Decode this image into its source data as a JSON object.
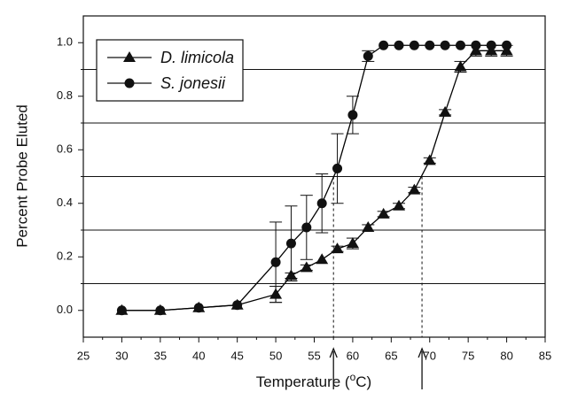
{
  "chart_data": {
    "type": "line",
    "xlabel": "Temperature (°C)",
    "ylabel": "Percent Probe Eluted",
    "xlim": [
      25,
      85
    ],
    "ylim": [
      -0.1,
      1.1
    ],
    "x_ticks": [
      25,
      30,
      35,
      40,
      45,
      50,
      55,
      60,
      65,
      70,
      75,
      80,
      85
    ],
    "y_ticks": [
      0.0,
      0.2,
      0.4,
      0.6,
      0.8,
      1.0
    ],
    "reference_lines": [
      0.1,
      0.3,
      0.5,
      0.7,
      0.9
    ],
    "legend_position": "top-left",
    "series": [
      {
        "name": "D. limicola",
        "marker": "triangle",
        "color": "#000000",
        "x": [
          30,
          35,
          40,
          45,
          50,
          52,
          54,
          56,
          58,
          60,
          62,
          64,
          66,
          68,
          70,
          72,
          74,
          76,
          78,
          80
        ],
        "y": [
          0.0,
          0.0,
          0.01,
          0.02,
          0.06,
          0.13,
          0.16,
          0.19,
          0.23,
          0.25,
          0.31,
          0.36,
          0.39,
          0.45,
          0.56,
          0.74,
          0.91,
          0.97,
          0.97,
          0.97
        ],
        "error": [
          0.0,
          0.0,
          0.0,
          0.0,
          0.03,
          0.01,
          0.01,
          0.0,
          0.01,
          0.02,
          0.01,
          0.01,
          0.01,
          0.01,
          0.01,
          0.01,
          0.02,
          0.02,
          0.02,
          0.02
        ]
      },
      {
        "name": "S. jonesii",
        "marker": "circle",
        "color": "#000000",
        "x": [
          30,
          35,
          40,
          45,
          50,
          52,
          54,
          56,
          58,
          60,
          62,
          64,
          66,
          68,
          70,
          72,
          74,
          76,
          78,
          80
        ],
        "y": [
          0.0,
          0.0,
          0.01,
          0.02,
          0.18,
          0.25,
          0.31,
          0.4,
          0.53,
          0.73,
          0.95,
          0.99,
          0.99,
          0.99,
          0.99,
          0.99,
          0.99,
          0.99,
          0.99,
          0.99
        ],
        "error": [
          0.0,
          0.0,
          0.0,
          0.0,
          0.15,
          0.14,
          0.12,
          0.11,
          0.13,
          0.07,
          0.02,
          0.0,
          0.0,
          0.0,
          0.0,
          0.0,
          0.0,
          0.0,
          0.0,
          0.0
        ]
      }
    ],
    "dashed_markers": [
      {
        "x": 57.5,
        "y": 0.5
      },
      {
        "x": 69,
        "y": 0.5
      }
    ]
  }
}
